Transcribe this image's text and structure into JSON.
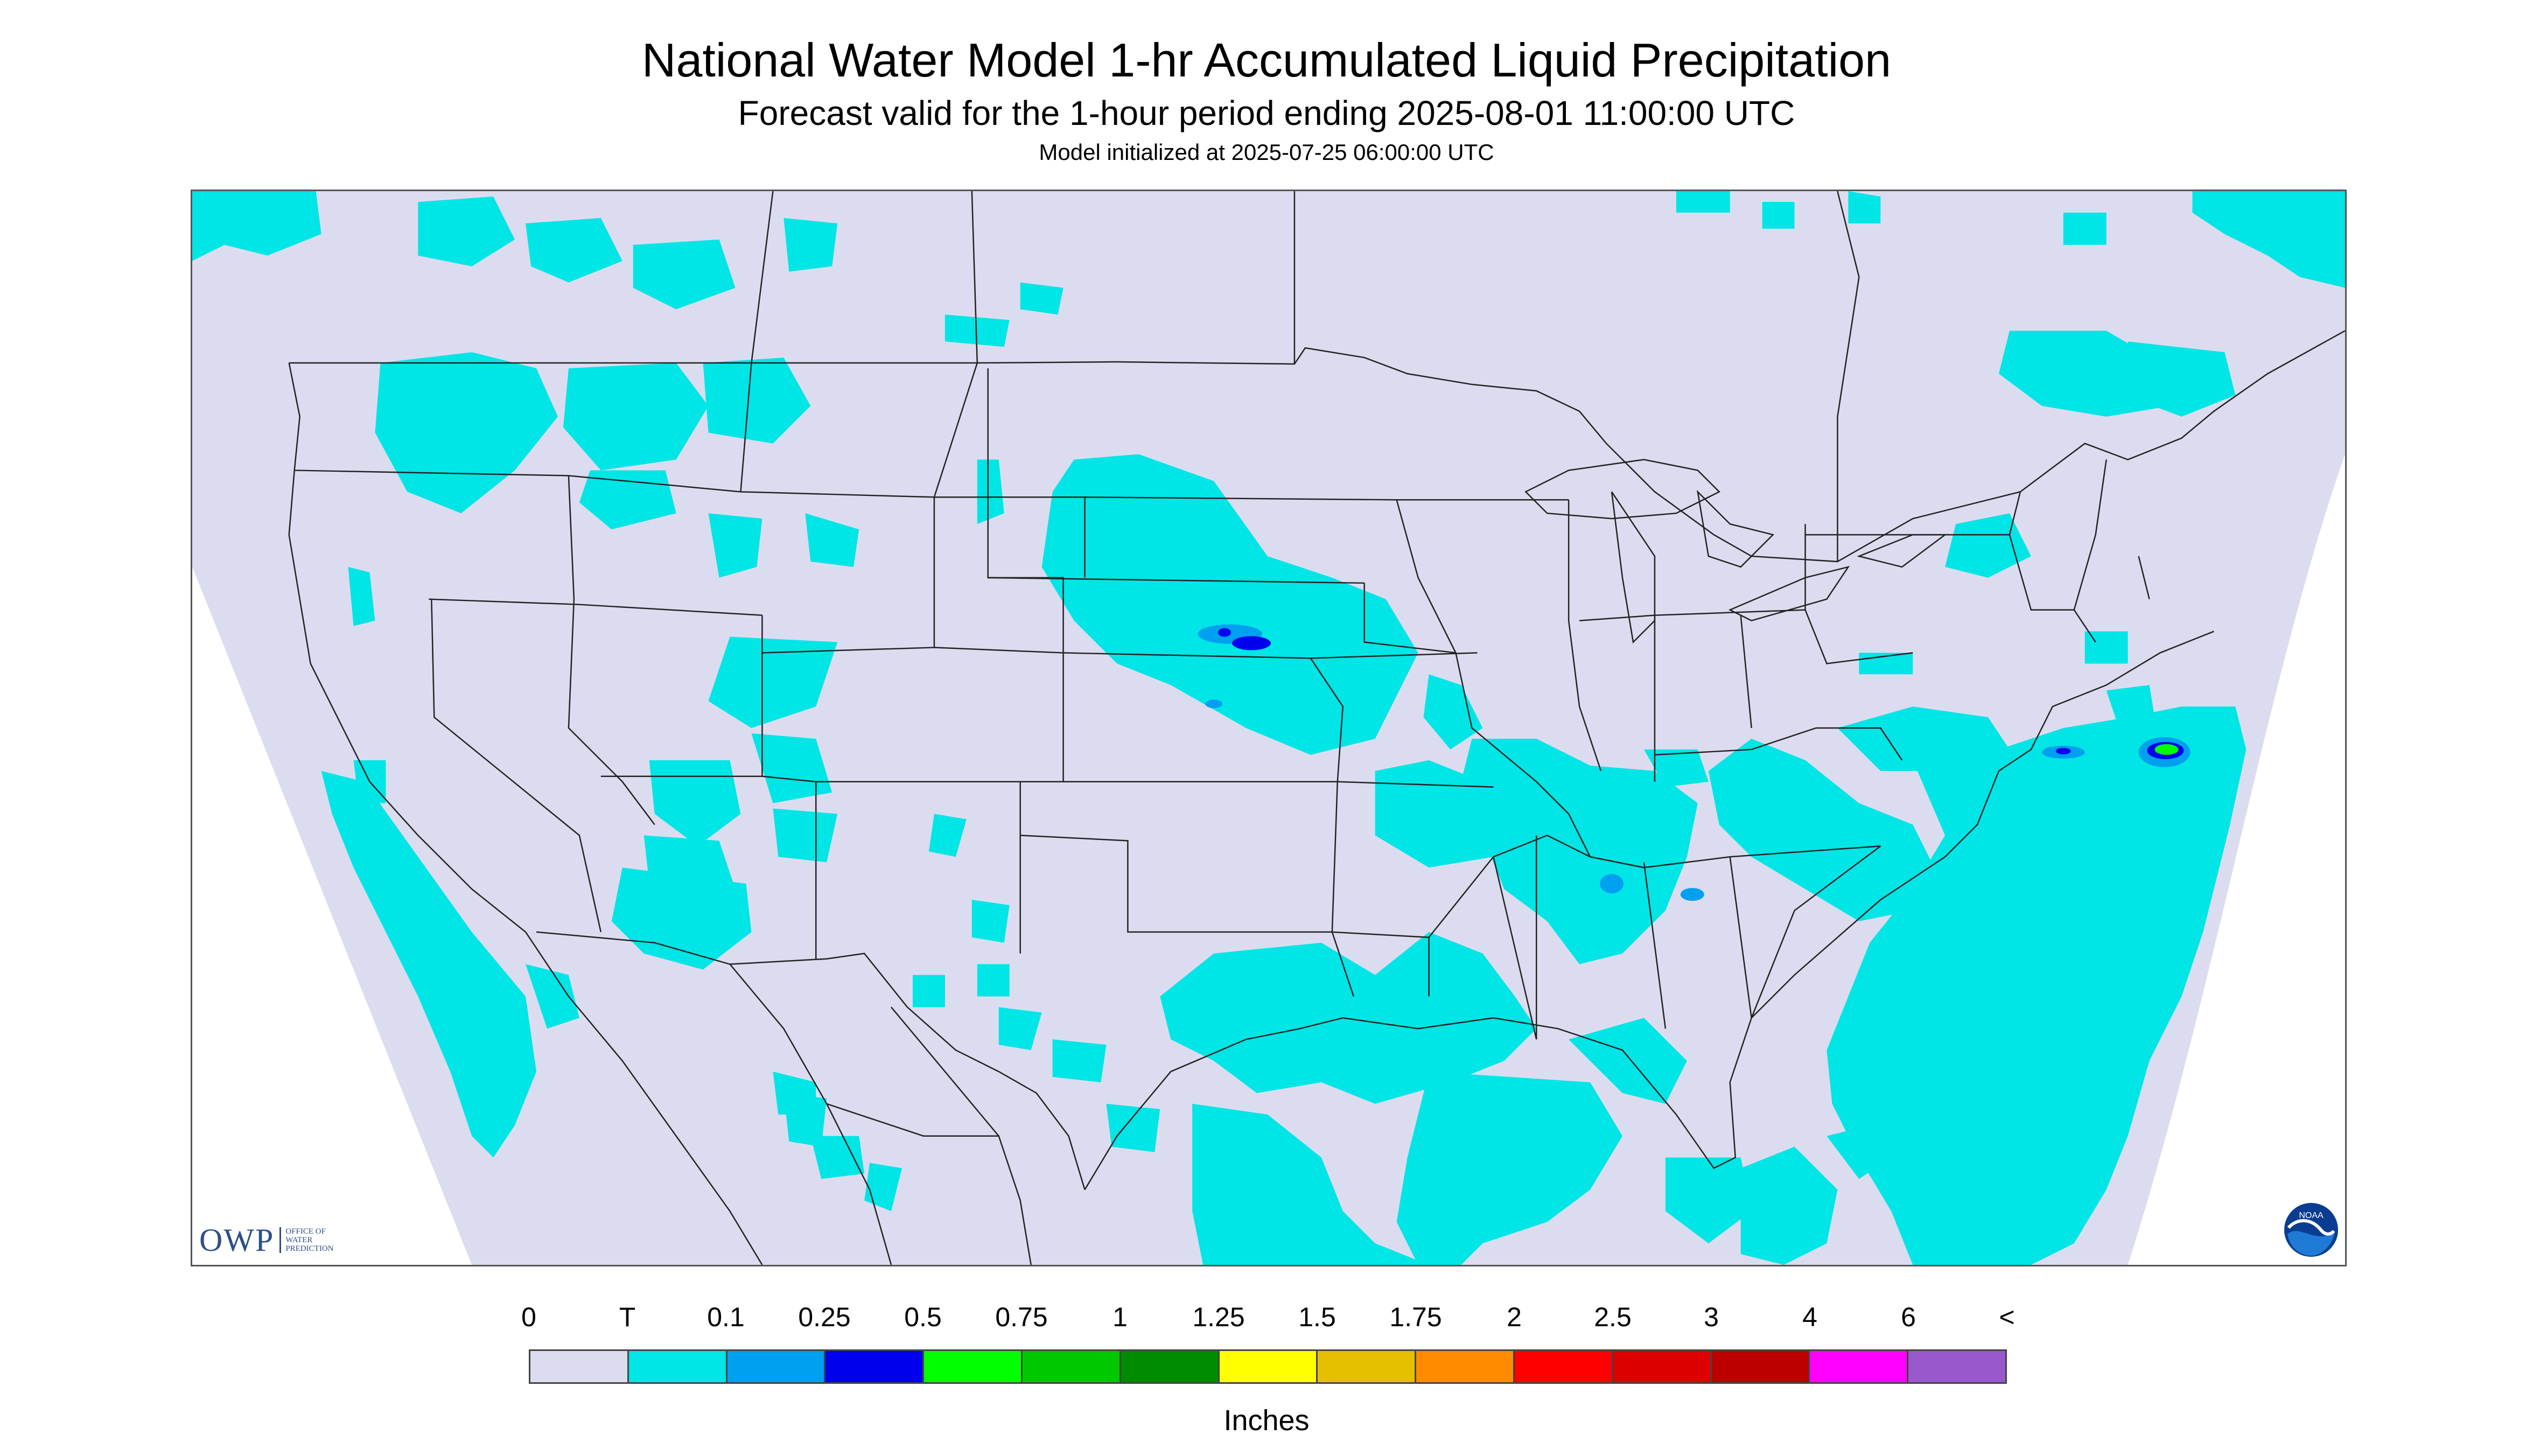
{
  "header": {
    "title": "National Water Model 1-hr Accumulated Liquid Precipitation",
    "subtitle": "Forecast valid for the 1-hour period ending 2025-08-01 11:00:00 UTC",
    "init_line": "Model initialized at 2025-07-25 06:00:00 UTC"
  },
  "logos": {
    "owp_text": "OWP",
    "owp_subtext": "OFFICE OF\nWATER\nPREDICTION",
    "noaa_text": "NOAA"
  },
  "colors": {
    "no_data": "#ffffff",
    "background_zero": "#dcdcf0",
    "trace": "#00e5e5",
    "boundaries": "#222222"
  },
  "legend": {
    "unit_label": "Inches",
    "tick_labels": [
      "0",
      "T",
      "0.1",
      "0.25",
      "0.5",
      "0.75",
      "1",
      "1.25",
      "1.5",
      "1.75",
      "2",
      "2.5",
      "3",
      "4",
      "6",
      "<"
    ],
    "swatches": [
      "#dcdcf0",
      "#00e5e5",
      "#00a0f0",
      "#0000ee",
      "#00ff00",
      "#00c800",
      "#008c00",
      "#ffff00",
      "#e6be00",
      "#ff8c00",
      "#ff0000",
      "#dc0000",
      "#bc0000",
      "#ff00ff",
      "#9958cc"
    ]
  }
}
